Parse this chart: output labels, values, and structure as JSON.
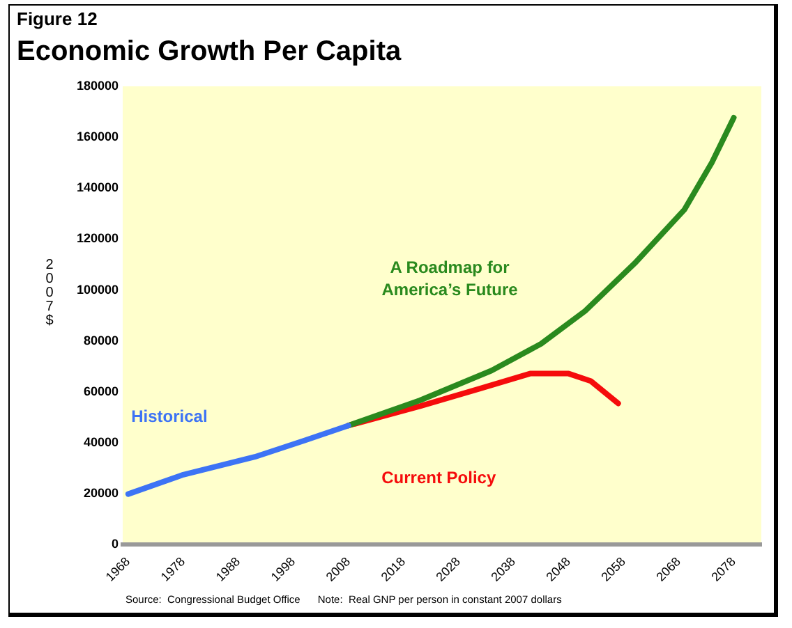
{
  "chart_data": {
    "type": "line",
    "subtitle": "Figure 12",
    "title": "Economic Growth Per Capita",
    "ylabel": "2007$",
    "annotations": [
      "Source:  Congressional Budget Office",
      "Note:  Real GNP per person in constant 2007 dollars"
    ],
    "series": [
      {
        "name": "Historical",
        "color": "#3d73f5",
        "x": [
          1968,
          1978,
          1991,
          2000,
          2008
        ],
        "values": [
          19900,
          27500,
          34500,
          40900,
          46800
        ]
      },
      {
        "name": "A Roadmap for America’s Future",
        "color": "#2a8a1e",
        "x": [
          2008,
          2021,
          2034,
          2043,
          2051,
          2060,
          2069,
          2074,
          2078
        ],
        "values": [
          46800,
          56700,
          68400,
          78900,
          91800,
          110500,
          131500,
          150000,
          167700
        ]
      },
      {
        "name": "Current Policy",
        "color": "#f50c0c",
        "x": [
          2008,
          2021,
          2032,
          2041,
          2048,
          2052,
          2057
        ],
        "values": [
          46800,
          54400,
          61400,
          67200,
          67200,
          64300,
          55500
        ]
      }
    ],
    "xlim": [
      1967,
      2083
    ],
    "xticks": [
      1968,
      1978,
      1988,
      1998,
      2008,
      2018,
      2028,
      2038,
      2048,
      2058,
      2068,
      2078
    ],
    "ylim": [
      0,
      180000
    ],
    "yticks": [
      0,
      20000,
      40000,
      60000,
      80000,
      100000,
      120000,
      140000,
      160000,
      180000
    ],
    "grid": false,
    "legend": false,
    "marker": "none",
    "line_style": "solid"
  }
}
